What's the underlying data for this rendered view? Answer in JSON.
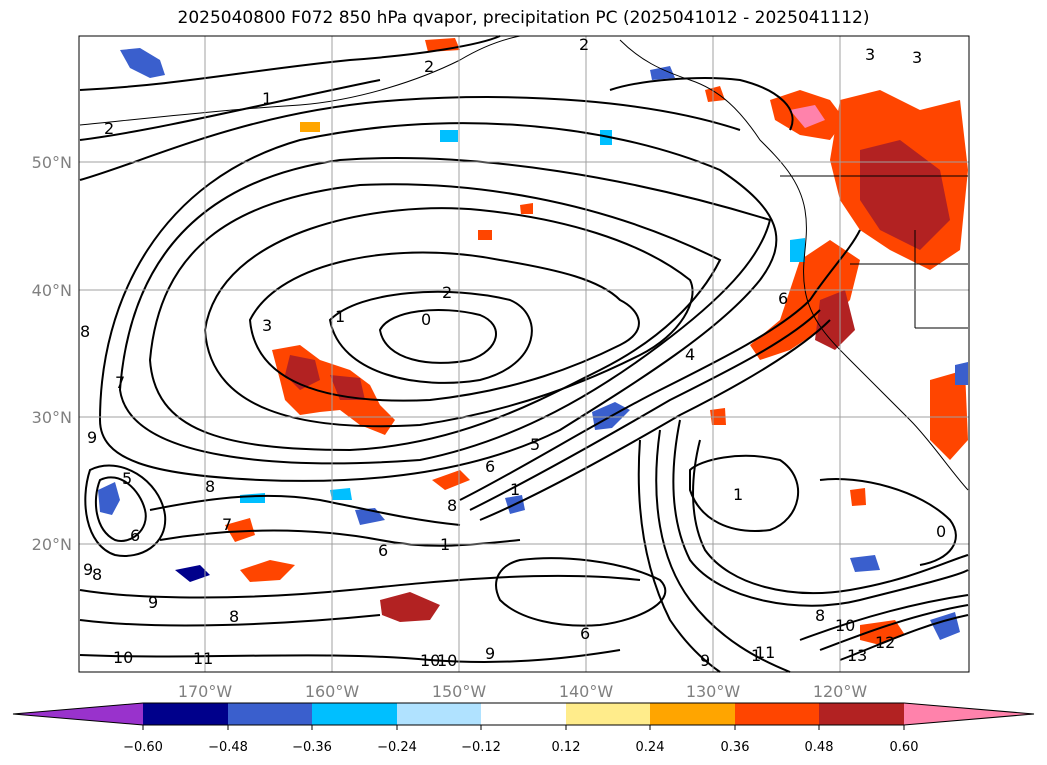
{
  "title": "2025040800 F072 850 hPa qvapor, precipitation PC (2025041012 - 2025041112)",
  "map": {
    "lat_labels": [
      "50°N",
      "40°N",
      "30°N",
      "20°N"
    ],
    "lon_labels": [
      "170°W",
      "160°W",
      "150°W",
      "140°W",
      "130°W",
      "120°W"
    ],
    "contour_labels": [
      "1",
      "2",
      "2",
      "2",
      "3",
      "3",
      "0",
      "1",
      "2",
      "3",
      "4",
      "5",
      "6",
      "6",
      "7",
      "8",
      "8",
      "9",
      "9",
      "10",
      "11",
      "10",
      "9",
      "1",
      "1",
      "0",
      "8",
      "8",
      "1",
      "6",
      "5",
      "10",
      "12",
      "13",
      "1",
      "9",
      "6",
      "7",
      "6",
      "8",
      "9",
      "10",
      "11",
      "8"
    ],
    "colors": {
      "grid": "#a0a0a0",
      "contour": "#000000",
      "ocean_bg": "#ffffff"
    }
  },
  "colorbar": {
    "tick_labels": [
      "−0.60",
      "−0.48",
      "−0.36",
      "−0.24",
      "−0.12",
      "0.12",
      "0.24",
      "0.36",
      "0.48",
      "0.60"
    ],
    "colors": [
      "#9932cc",
      "#00008b",
      "#3a5fcd",
      "#00bfff",
      "#b0e2ff",
      "#ffffff",
      "#ffec8b",
      "#ffa500",
      "#ff4500",
      "#b22222",
      "#ff82ab"
    ]
  }
}
